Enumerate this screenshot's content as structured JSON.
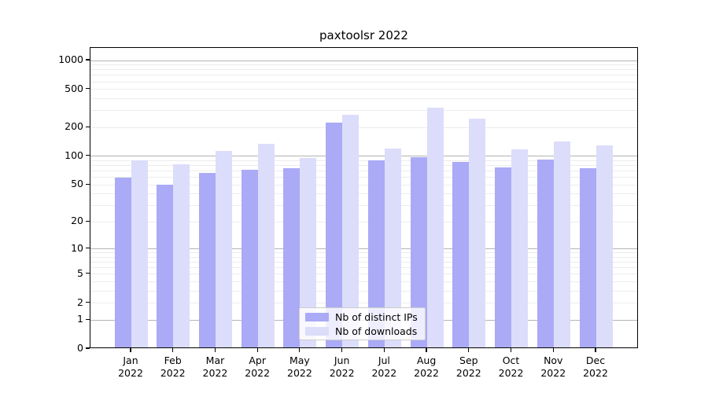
{
  "title": "paxtoolsr 2022",
  "legend": {
    "items": [
      {
        "label": "Nb of distinct IPs",
        "color": "#aaaaf7"
      },
      {
        "label": "Nb of downloads",
        "color": "#dcddfa"
      }
    ]
  },
  "chart_data": {
    "type": "bar",
    "title": "paxtoolsr 2022",
    "categories": [
      "Jan",
      "Feb",
      "Mar",
      "Apr",
      "May",
      "Jun",
      "Jul",
      "Aug",
      "Sep",
      "Oct",
      "Nov",
      "Dec"
    ],
    "category_year": "2022",
    "series": [
      {
        "name": "Nb of distinct IPs",
        "color": "#aaaaf7",
        "values": [
          57,
          48,
          64,
          70,
          72,
          217,
          88,
          94,
          84,
          73,
          89,
          72
        ]
      },
      {
        "name": "Nb of downloads",
        "color": "#dcddfa",
        "values": [
          87,
          79,
          109,
          130,
          93,
          264,
          117,
          313,
          240,
          115,
          137,
          125
        ]
      }
    ],
    "xlabel": "",
    "ylabel": "",
    "y_axis": {
      "scale": "log10(1+y)",
      "tick_values": [
        0,
        1,
        2,
        5,
        10,
        20,
        50,
        100,
        200,
        500,
        1000
      ],
      "minor_grid_values": [
        2,
        3,
        4,
        5,
        6,
        7,
        8,
        9,
        20,
        30,
        40,
        50,
        60,
        70,
        80,
        90,
        200,
        300,
        400,
        500,
        600,
        700,
        800,
        900
      ],
      "major_grid_values": [
        1,
        10,
        100,
        1000
      ],
      "ymax": 1353
    },
    "grid": {
      "major_color": "#b3b3b3",
      "minor_color": "#ececec"
    },
    "legend_position": "lower center"
  }
}
